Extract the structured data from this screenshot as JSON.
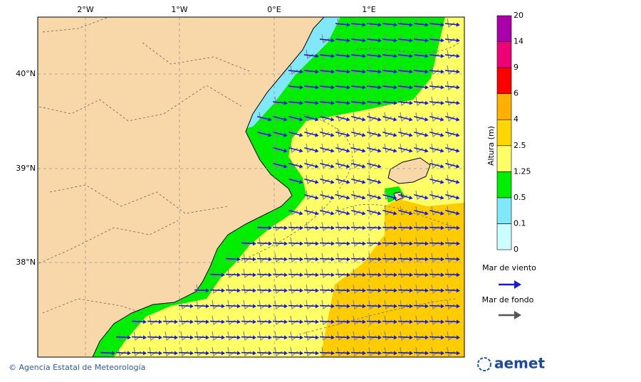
{
  "map": {
    "lon_labels": [
      "2°W",
      "1°W",
      "0°E",
      "1°E"
    ],
    "lat_labels": [
      "40°N",
      "39°N",
      "38°N"
    ]
  },
  "colorbar": {
    "title": "Altura (m)",
    "levels": [
      0,
      0.1,
      0.5,
      1.25,
      2.5,
      4,
      6,
      9,
      14,
      20
    ],
    "colors": [
      "#ccffff",
      "#80e8f8",
      "#00ee00",
      "#ffff66",
      "#ffd700",
      "#ffb000",
      "#ff0000",
      "#ee0077",
      "#aa00aa"
    ]
  },
  "legend": {
    "wind_sea": "Mar de viento",
    "swell": "Mar de fondo"
  },
  "footer": {
    "credit": "© Agencia Estatal de Meteorología",
    "logo": "aemet"
  }
}
